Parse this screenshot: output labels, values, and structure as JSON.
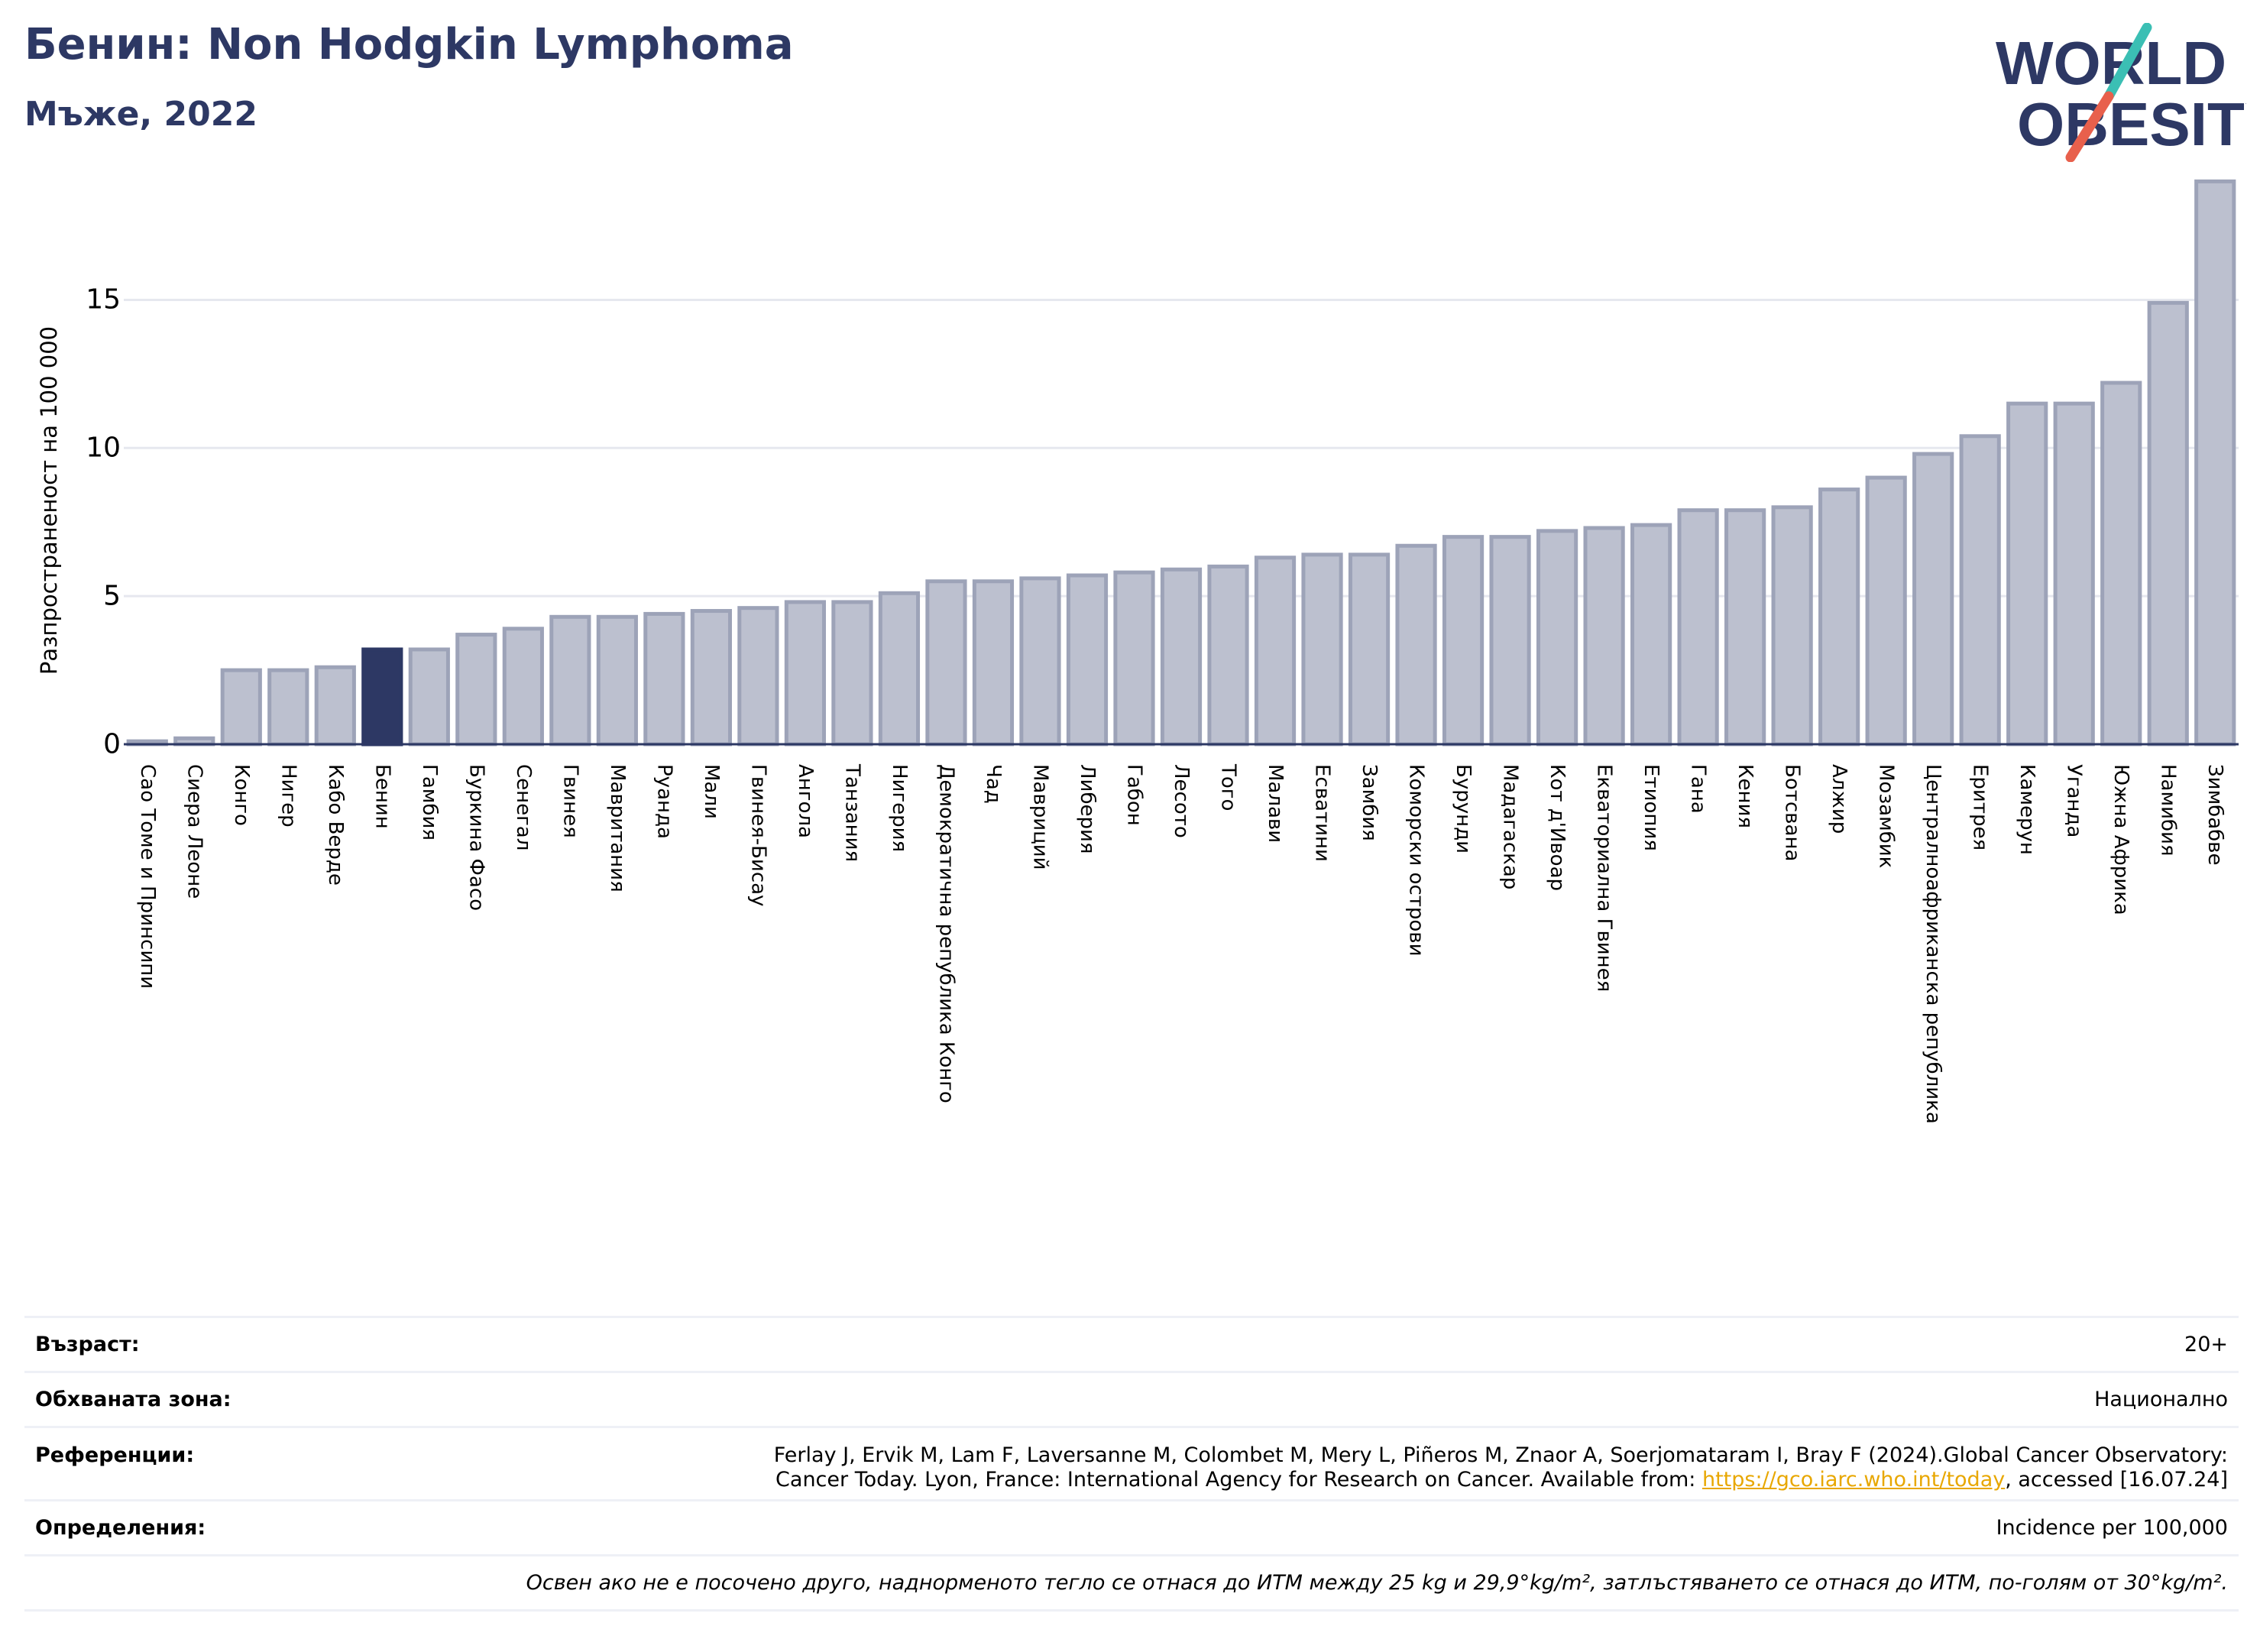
{
  "header": {
    "title": "Бенин: Non Hodgkin Lymphoma",
    "subtitle": "Мъже, 2022"
  },
  "logo": {
    "line1": "WORLD",
    "line2": "OBESITY",
    "colors": {
      "text": "#2d3864",
      "slash_top": "#3bbfb4",
      "slash_bottom": "#e8604c"
    }
  },
  "colors": {
    "bar": "#bcc0cf",
    "bar_edge": "#9da3b8",
    "highlight": "#2d3864",
    "grid": "#e6e8ef",
    "axis": "#2d3864"
  },
  "chart_data": {
    "type": "bar",
    "ylabel": "Разпространеност  на 100 000",
    "ylim": [
      0,
      19.5
    ],
    "yticks": [
      0,
      5,
      10,
      15
    ],
    "grid": true,
    "highlight": "Бенин",
    "categories": [
      "Сао Томе и Принсипи",
      "Сиера Леоне",
      "Конго",
      "Нигер",
      "Кабо Верде",
      "Бенин",
      "Гамбия",
      "Буркина Фасо",
      "Сенегал",
      "Гвинея",
      "Мавритания",
      "Руанда",
      "Мали",
      "Гвинея-Бисау",
      "Ангола",
      "Танзания",
      "Нигерия",
      "Демократична република Конго",
      "Чад",
      "Мавриций",
      "Либерия",
      "Габон",
      "Лесото",
      "Того",
      "Малави",
      "Есватини",
      "Замбия",
      "Коморски острови",
      "Бурунди",
      "Мадагаскар",
      "Кот д'Ивоар",
      "Екваториална Гвинея",
      "Етиопия",
      "Гана",
      "Кения",
      "Ботсвана",
      "Алжир",
      "Мозамбик",
      "Централноафриканска република",
      "Еритрея",
      "Камерун",
      "Уганда",
      "Южна Африка",
      "Намибия",
      "Зимбабве"
    ],
    "values": [
      0.1,
      0.2,
      2.5,
      2.5,
      2.6,
      3.2,
      3.2,
      3.7,
      3.9,
      4.3,
      4.3,
      4.4,
      4.5,
      4.6,
      4.8,
      4.8,
      5.1,
      5.5,
      5.5,
      5.6,
      5.7,
      5.8,
      5.9,
      6.0,
      6.3,
      6.4,
      6.4,
      6.7,
      7.0,
      7.0,
      7.2,
      7.3,
      7.4,
      7.9,
      7.9,
      8.0,
      8.6,
      9.0,
      9.8,
      10.4,
      11.5,
      11.5,
      12.2,
      14.9,
      19.0
    ]
  },
  "info": {
    "age_label": "Възраст:",
    "age_value": "20+",
    "area_label": "Обхваната зона:",
    "area_value": "Национално",
    "refs_label": "Референции:",
    "refs_line1": "Ferlay J, Ervik M, Lam F, Laversanne M, Colombet M, Mery L, Piñeros M, Znaor A, Soerjomataram I, Bray F (2024).Global Cancer Observatory:",
    "refs_line2_pre": "Cancer Today. Lyon, France: International Agency for Research on Cancer. Available from: ",
    "refs_link": "https://gco.iarc.who.int/today",
    "refs_line2_post": ", accessed [16.07.24]",
    "defs_label": "Определения:",
    "defs_value": "Incidence per 100,000",
    "note": "Освен ако не е посочено друго, наднорменото тегло се отнася до ИТМ между 25 kg и 29,9°kg/m², затлъстяването се отнася до ИТМ, по-голям от 30°kg/m²."
  }
}
